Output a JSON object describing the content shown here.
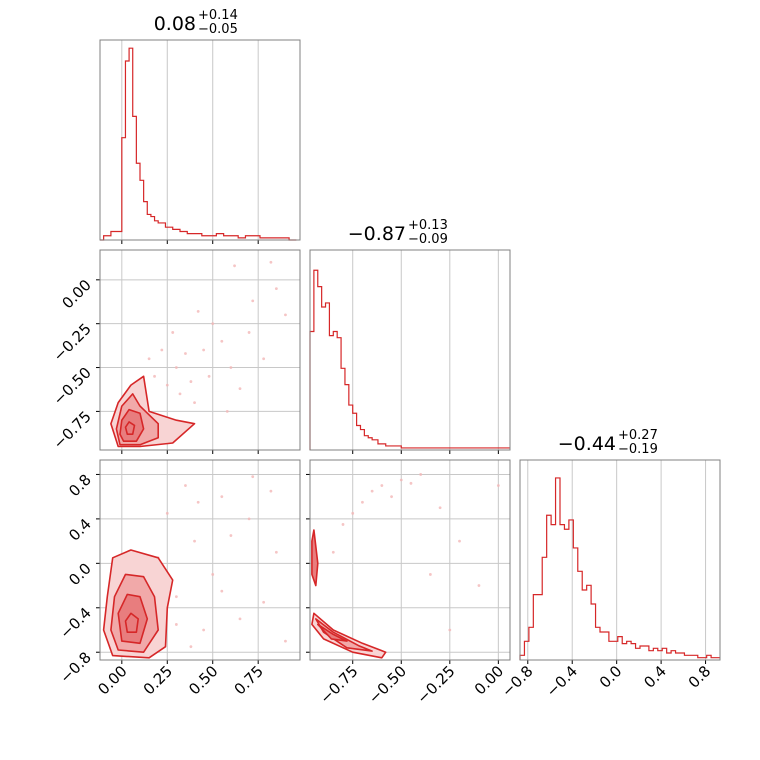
{
  "figure": {
    "accent_color": "#d62728",
    "fill_colors": [
      "#f8d4d4",
      "#f1a9a9",
      "#e87d7e"
    ],
    "point_color": "#f3b6b7"
  },
  "chart_data": [
    {
      "type": "histogram",
      "panel": "x0",
      "title": {
        "median": "0.08",
        "plus": "+0.14",
        "minus": "−0.05"
      },
      "x_range": [
        -0.12,
        0.98
      ],
      "x_ticks": [
        0.0,
        0.25,
        0.5,
        0.75
      ],
      "x_tick_labels": [
        "",
        "",
        "",
        ""
      ],
      "bin_edges": [
        -0.12,
        -0.1,
        -0.08,
        -0.06,
        -0.04,
        -0.02,
        0.0,
        0.02,
        0.04,
        0.06,
        0.08,
        0.1,
        0.12,
        0.14,
        0.16,
        0.18,
        0.2,
        0.24,
        0.28,
        0.32,
        0.36,
        0.4,
        0.44,
        0.48,
        0.52,
        0.56,
        0.6,
        0.64,
        0.68,
        0.72,
        0.76,
        0.8,
        0.84,
        0.88,
        0.92,
        0.96
      ],
      "counts": [
        0,
        2,
        2,
        4,
        4,
        4,
        48,
        84,
        90,
        58,
        36,
        28,
        18,
        12,
        11,
        9,
        8,
        6,
        5,
        4,
        3,
        3,
        2,
        2,
        3,
        2,
        2,
        1,
        2,
        2,
        1,
        1,
        1,
        1,
        0
      ],
      "y_max": 92
    },
    {
      "type": "scatter-contour",
      "panel": "x0-x1",
      "x_range": [
        -0.12,
        0.98
      ],
      "y_range": [
        -0.97,
        0.17
      ],
      "x_ticks": [
        0.0,
        0.25,
        0.5,
        0.75
      ],
      "y_ticks": [
        0.0,
        -0.25,
        -0.5,
        -0.75
      ],
      "x_tick_labels": [
        "",
        "",
        "",
        ""
      ],
      "y_tick_labels": [
        "0.00",
        "−0.25",
        "−0.50",
        "−0.75"
      ],
      "scatter_points": [
        [
          0.62,
          0.08
        ],
        [
          0.85,
          -0.05
        ],
        [
          0.42,
          -0.18
        ],
        [
          0.7,
          -0.3
        ],
        [
          0.35,
          -0.42
        ],
        [
          0.55,
          -0.35
        ],
        [
          0.3,
          -0.5
        ],
        [
          0.9,
          -0.2
        ],
        [
          0.48,
          -0.55
        ],
        [
          0.25,
          -0.6
        ],
        [
          0.65,
          -0.62
        ],
        [
          0.4,
          -0.7
        ],
        [
          0.22,
          -0.4
        ],
        [
          0.78,
          -0.45
        ],
        [
          0.32,
          -0.65
        ],
        [
          0.5,
          -0.25
        ],
        [
          0.18,
          -0.55
        ],
        [
          0.6,
          -0.5
        ],
        [
          0.45,
          -0.4
        ],
        [
          0.28,
          -0.3
        ],
        [
          0.82,
          0.1
        ],
        [
          0.15,
          -0.45
        ],
        [
          0.38,
          -0.58
        ],
        [
          0.72,
          -0.12
        ],
        [
          0.58,
          -0.75
        ]
      ],
      "contours": [
        [
          [
            -0.02,
            -0.95
          ],
          [
            0.1,
            -0.95
          ],
          [
            0.28,
            -0.93
          ],
          [
            0.4,
            -0.82
          ],
          [
            0.3,
            -0.8
          ],
          [
            0.15,
            -0.75
          ],
          [
            0.12,
            -0.55
          ],
          [
            0.05,
            -0.6
          ],
          [
            -0.02,
            -0.7
          ],
          [
            -0.06,
            -0.82
          ]
        ],
        [
          [
            -0.01,
            -0.94
          ],
          [
            0.1,
            -0.94
          ],
          [
            0.2,
            -0.9
          ],
          [
            0.2,
            -0.82
          ],
          [
            0.1,
            -0.72
          ],
          [
            0.06,
            -0.65
          ],
          [
            0.0,
            -0.72
          ],
          [
            -0.03,
            -0.85
          ]
        ],
        [
          [
            0.01,
            -0.92
          ],
          [
            0.08,
            -0.92
          ],
          [
            0.12,
            -0.85
          ],
          [
            0.1,
            -0.76
          ],
          [
            0.04,
            -0.74
          ],
          [
            0.0,
            -0.8
          ],
          [
            -0.01,
            -0.88
          ]
        ],
        [
          [
            0.03,
            -0.88
          ],
          [
            0.06,
            -0.88
          ],
          [
            0.07,
            -0.83
          ],
          [
            0.04,
            -0.81
          ],
          [
            0.02,
            -0.84
          ]
        ]
      ]
    },
    {
      "type": "histogram",
      "panel": "x1",
      "title": {
        "median": "−0.87",
        "plus": "+0.13",
        "minus": "−0.09"
      },
      "x_range": [
        -0.97,
        0.06
      ],
      "x_ticks": [
        -0.75,
        -0.5,
        -0.25,
        0.0
      ],
      "x_tick_labels": [
        "",
        "",
        "",
        ""
      ],
      "bin_edges": [
        -0.97,
        -0.95,
        -0.93,
        -0.91,
        -0.89,
        -0.87,
        -0.85,
        -0.83,
        -0.81,
        -0.79,
        -0.77,
        -0.75,
        -0.73,
        -0.71,
        -0.69,
        -0.67,
        -0.65,
        -0.62,
        -0.58,
        -0.54,
        -0.5,
        -0.45,
        -0.4,
        -0.3,
        -0.2,
        -0.1,
        -0.05,
        0.0,
        0.06
      ],
      "counts": [
        58,
        88,
        80,
        70,
        72,
        56,
        58,
        55,
        40,
        32,
        22,
        18,
        12,
        10,
        7,
        6,
        5,
        3,
        2,
        2,
        1,
        1,
        1,
        1,
        1,
        1,
        1,
        1
      ],
      "y_max": 96
    },
    {
      "type": "scatter-contour",
      "panel": "x0-x2",
      "x_range": [
        -0.12,
        0.98
      ],
      "y_range": [
        -0.87,
        0.93
      ],
      "x_ticks": [
        0.0,
        0.25,
        0.5,
        0.75
      ],
      "y_ticks": [
        0.8,
        0.4,
        0.0,
        -0.4,
        -0.8
      ],
      "x_tick_labels": [
        "0.00",
        "0.25",
        "0.50",
        "0.75"
      ],
      "y_tick_labels": [
        "0.8",
        "0.4",
        "0.0",
        "−0.4",
        "−0.8"
      ],
      "scatter_points": [
        [
          0.35,
          0.7
        ],
        [
          0.55,
          0.6
        ],
        [
          0.7,
          0.4
        ],
        [
          0.4,
          0.2
        ],
        [
          0.85,
          0.1
        ],
        [
          0.5,
          -0.1
        ],
        [
          0.3,
          -0.3
        ],
        [
          0.65,
          -0.5
        ],
        [
          0.45,
          -0.6
        ],
        [
          0.78,
          -0.35
        ],
        [
          0.25,
          0.45
        ],
        [
          0.6,
          0.25
        ],
        [
          0.9,
          -0.7
        ],
        [
          0.38,
          -0.75
        ],
        [
          0.72,
          0.78
        ],
        [
          0.2,
          0.05
        ],
        [
          0.55,
          -0.25
        ],
        [
          0.42,
          0.55
        ],
        [
          0.82,
          0.65
        ],
        [
          0.3,
          -0.55
        ]
      ],
      "contours": [
        [
          [
            -0.05,
            -0.83
          ],
          [
            0.15,
            -0.85
          ],
          [
            0.24,
            -0.75
          ],
          [
            0.25,
            -0.4
          ],
          [
            0.28,
            -0.15
          ],
          [
            0.2,
            0.05
          ],
          [
            0.05,
            0.12
          ],
          [
            -0.05,
            0.05
          ],
          [
            -0.08,
            -0.3
          ],
          [
            -0.1,
            -0.6
          ]
        ],
        [
          [
            -0.02,
            -0.78
          ],
          [
            0.12,
            -0.8
          ],
          [
            0.2,
            -0.6
          ],
          [
            0.18,
            -0.3
          ],
          [
            0.12,
            -0.12
          ],
          [
            0.02,
            -0.1
          ],
          [
            -0.04,
            -0.3
          ],
          [
            -0.06,
            -0.6
          ]
        ],
        [
          [
            0.0,
            -0.7
          ],
          [
            0.1,
            -0.72
          ],
          [
            0.14,
            -0.5
          ],
          [
            0.1,
            -0.3
          ],
          [
            0.03,
            -0.28
          ],
          [
            -0.02,
            -0.45
          ]
        ],
        [
          [
            0.03,
            -0.62
          ],
          [
            0.08,
            -0.62
          ],
          [
            0.09,
            -0.5
          ],
          [
            0.05,
            -0.45
          ],
          [
            0.02,
            -0.52
          ]
        ]
      ]
    },
    {
      "type": "scatter-contour",
      "panel": "x1-x2",
      "x_range": [
        -0.97,
        0.06
      ],
      "y_range": [
        -0.87,
        0.93
      ],
      "x_ticks": [
        -0.75,
        -0.5,
        -0.25,
        0.0
      ],
      "y_ticks": [
        0.8,
        0.4,
        0.0,
        -0.4,
        -0.8
      ],
      "x_tick_labels": [
        "−0.75",
        "−0.50",
        "−0.25",
        "0.00"
      ],
      "y_tick_labels": [
        "",
        "",
        "",
        "",
        ""
      ],
      "scatter_points": [
        [
          -0.6,
          0.7
        ],
        [
          -0.5,
          0.75
        ],
        [
          -0.4,
          0.8
        ],
        [
          -0.7,
          0.55
        ],
        [
          -0.8,
          0.35
        ],
        [
          -0.55,
          0.6
        ],
        [
          -0.45,
          0.72
        ],
        [
          -0.85,
          0.1
        ],
        [
          -0.3,
          0.5
        ],
        [
          -0.2,
          0.2
        ],
        [
          -0.1,
          -0.2
        ],
        [
          -0.35,
          -0.1
        ],
        [
          -0.25,
          -0.6
        ],
        [
          0.0,
          0.7
        ],
        [
          -0.65,
          0.65
        ],
        [
          -0.75,
          0.45
        ]
      ],
      "contours": [
        [
          [
            -0.95,
            -0.45
          ],
          [
            -0.85,
            -0.6
          ],
          [
            -0.7,
            -0.72
          ],
          [
            -0.58,
            -0.8
          ],
          [
            -0.6,
            -0.85
          ],
          [
            -0.75,
            -0.8
          ],
          [
            -0.9,
            -0.68
          ],
          [
            -0.96,
            -0.55
          ]
        ],
        [
          [
            -0.94,
            -0.5
          ],
          [
            -0.85,
            -0.62
          ],
          [
            -0.72,
            -0.74
          ],
          [
            -0.65,
            -0.79
          ],
          [
            -0.78,
            -0.76
          ],
          [
            -0.9,
            -0.62
          ]
        ],
        [
          [
            -0.93,
            -0.55
          ],
          [
            -0.85,
            -0.64
          ],
          [
            -0.78,
            -0.7
          ],
          [
            -0.86,
            -0.68
          ]
        ],
        [
          [
            -0.95,
            0.3
          ],
          [
            -0.93,
            0.0
          ],
          [
            -0.94,
            -0.2
          ],
          [
            -0.96,
            -0.1
          ],
          [
            -0.96,
            0.2
          ]
        ]
      ]
    },
    {
      "type": "histogram",
      "panel": "x2",
      "title": {
        "median": "−0.44",
        "plus": "+0.27",
        "minus": "−0.19"
      },
      "x_range": [
        -0.87,
        0.93
      ],
      "x_ticks": [
        -0.8,
        -0.4,
        0.0,
        0.4,
        0.8
      ],
      "x_tick_labels": [
        "−0.8",
        "−0.4",
        "0.0",
        "0.4",
        "0.8"
      ],
      "bin_edges": [
        -0.87,
        -0.83,
        -0.79,
        -0.75,
        -0.71,
        -0.67,
        -0.63,
        -0.59,
        -0.55,
        -0.51,
        -0.47,
        -0.43,
        -0.39,
        -0.35,
        -0.31,
        -0.27,
        -0.23,
        -0.19,
        -0.15,
        -0.11,
        -0.07,
        -0.03,
        0.01,
        0.05,
        0.09,
        0.13,
        0.17,
        0.21,
        0.25,
        0.29,
        0.33,
        0.37,
        0.41,
        0.45,
        0.49,
        0.53,
        0.57,
        0.61,
        0.65,
        0.69,
        0.73,
        0.77,
        0.81,
        0.85,
        0.89,
        0.93
      ],
      "counts": [
        2,
        8,
        14,
        28,
        28,
        44,
        62,
        58,
        78,
        58,
        56,
        60,
        48,
        38,
        30,
        32,
        24,
        14,
        12,
        12,
        8,
        8,
        10,
        7,
        8,
        7,
        5,
        6,
        6,
        4,
        5,
        4,
        5,
        3,
        4,
        3,
        3,
        2,
        2,
        2,
        1,
        1,
        2,
        1,
        1
      ],
      "y_max": 84
    }
  ]
}
